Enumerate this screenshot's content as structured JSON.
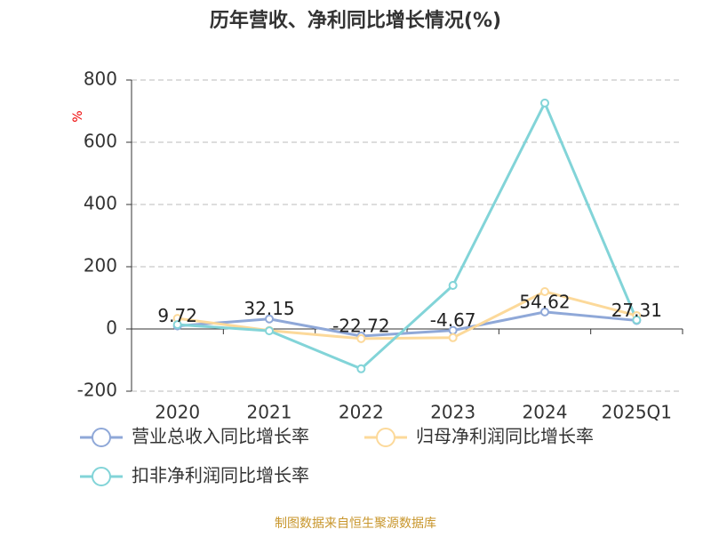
{
  "chart_data": {
    "type": "line",
    "title": "历年营收、净利同比增长情况(%)",
    "y_label": "%",
    "categories": [
      "2020",
      "2021",
      "2022",
      "2023",
      "2024",
      "2025Q1"
    ],
    "series": [
      {
        "name": "营业总收入同比增长率",
        "color": "#8fa8d8",
        "values": [
          9.72,
          32.15,
          -22.72,
          -4.67,
          54.62,
          27.31
        ]
      },
      {
        "name": "归母净利润同比增长率",
        "color": "#fcd99a",
        "values": [
          34,
          -5,
          -31,
          -28,
          120,
          43
        ]
      },
      {
        "name": "扣非净利润同比增长率",
        "color": "#82d4d8",
        "values": [
          14,
          -6,
          -128,
          140,
          726,
          29
        ]
      }
    ],
    "ylim": [
      -200,
      800
    ],
    "yticks": [
      -200,
      0,
      200,
      400,
      600,
      800
    ],
    "grid": true,
    "source": "制图数据来自恒生聚源数据库"
  }
}
